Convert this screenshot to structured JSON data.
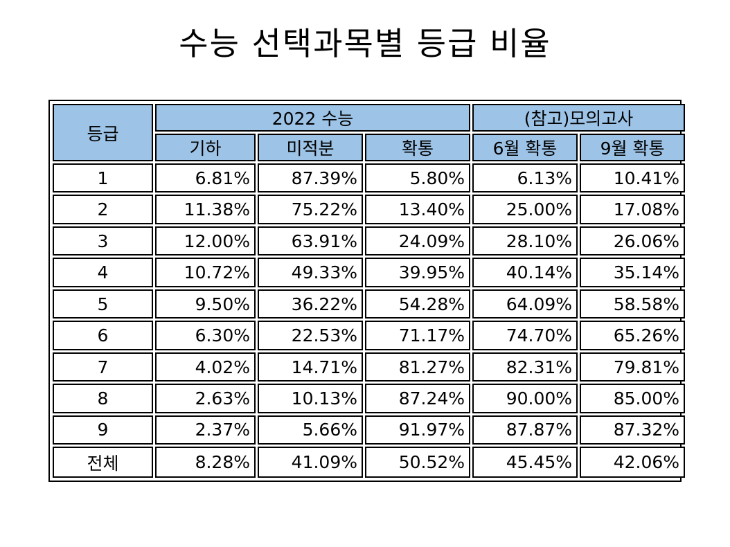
{
  "title": "수능 선택과목별 등급 비율",
  "table": {
    "grade_header": "등급",
    "group_2022": "2022 수능",
    "group_mock": "(참고)모의고사",
    "columns": [
      "기하",
      "미적분",
      "확통",
      "6월 확통",
      "9월 확통"
    ],
    "rows": [
      {
        "grade": "1",
        "values": [
          "6.81%",
          "87.39%",
          "5.80%",
          "6.13%",
          "10.41%"
        ]
      },
      {
        "grade": "2",
        "values": [
          "11.38%",
          "75.22%",
          "13.40%",
          "25.00%",
          "17.08%"
        ]
      },
      {
        "grade": "3",
        "values": [
          "12.00%",
          "63.91%",
          "24.09%",
          "28.10%",
          "26.06%"
        ]
      },
      {
        "grade": "4",
        "values": [
          "10.72%",
          "49.33%",
          "39.95%",
          "40.14%",
          "35.14%"
        ]
      },
      {
        "grade": "5",
        "values": [
          "9.50%",
          "36.22%",
          "54.28%",
          "64.09%",
          "58.58%"
        ]
      },
      {
        "grade": "6",
        "values": [
          "6.30%",
          "22.53%",
          "71.17%",
          "74.70%",
          "65.26%"
        ]
      },
      {
        "grade": "7",
        "values": [
          "4.02%",
          "14.71%",
          "81.27%",
          "82.31%",
          "79.81%"
        ]
      },
      {
        "grade": "8",
        "values": [
          "2.63%",
          "10.13%",
          "87.24%",
          "90.00%",
          "85.00%"
        ]
      },
      {
        "grade": "9",
        "values": [
          "2.37%",
          "5.66%",
          "91.97%",
          "87.87%",
          "87.32%"
        ]
      }
    ],
    "total": {
      "grade": "전체",
      "values": [
        "8.28%",
        "41.09%",
        "50.52%",
        "45.45%",
        "42.06%"
      ]
    }
  },
  "colors": {
    "header_bg": "#9dc3e6",
    "border": "#000000",
    "cell_bg": "#ffffff"
  }
}
